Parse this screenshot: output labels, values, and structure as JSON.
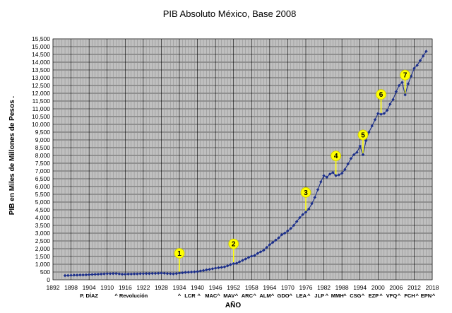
{
  "chart_data": {
    "type": "line",
    "title": "PIB Absoluto México, Base 2008",
    "xlabel": "AÑO",
    "ylabel": "PIB  en Miles de Millones de Pesos  .",
    "xlim": [
      1892,
      2018
    ],
    "ylim": [
      0,
      15500
    ],
    "x_ticks": [
      "1892",
      "1898",
      "1904",
      "1910",
      "1916",
      "1922",
      "1928",
      "1934",
      "1940",
      "1946",
      "1952",
      "1958",
      "1964",
      "1970",
      "1976",
      "1982",
      "1988",
      "1994",
      "2000",
      "2006",
      "2012",
      "2018"
    ],
    "y_ticks": [
      "0",
      "500",
      "1,000",
      "1,500",
      "2,000",
      "2,500",
      "3,000",
      "3,500",
      "4,000",
      "4,500",
      "5,000",
      "5,500",
      "6,000",
      "6,500",
      "7,000",
      "7,500",
      "8,000",
      "8,500",
      "9,000",
      "9,500",
      "10,000",
      "10,500",
      "11,000",
      "11,500",
      "12,000",
      "12,500",
      "13,000",
      "13,500",
      "14,000",
      "14,500",
      "15,000",
      "15,500"
    ],
    "grid": true,
    "line_color": "#1c2f8a",
    "plot_background": "#c0c0c0",
    "series": [
      {
        "name": "",
        "x": [
          1896,
          1897,
          1898,
          1899,
          1900,
          1901,
          1902,
          1903,
          1904,
          1905,
          1906,
          1907,
          1908,
          1909,
          1910,
          1911,
          1912,
          1913,
          1914,
          1915,
          1916,
          1917,
          1918,
          1919,
          1920,
          1921,
          1922,
          1923,
          1924,
          1925,
          1926,
          1927,
          1928,
          1929,
          1930,
          1931,
          1932,
          1933,
          1934,
          1935,
          1936,
          1937,
          1938,
          1939,
          1940,
          1941,
          1942,
          1943,
          1944,
          1945,
          1946,
          1947,
          1948,
          1949,
          1950,
          1951,
          1952,
          1953,
          1954,
          1955,
          1956,
          1957,
          1958,
          1959,
          1960,
          1961,
          1962,
          1963,
          1964,
          1965,
          1966,
          1967,
          1968,
          1969,
          1970,
          1971,
          1972,
          1973,
          1974,
          1975,
          1976,
          1977,
          1978,
          1979,
          1980,
          1981,
          1982,
          1983,
          1984,
          1985,
          1986,
          1987,
          1988,
          1989,
          1990,
          1991,
          1992,
          1993,
          1994,
          1995,
          1996,
          1997,
          1998,
          1999,
          2000,
          2001,
          2002,
          2003,
          2004,
          2005,
          2006,
          2007,
          2008,
          2009,
          2010,
          2011,
          2012,
          2013,
          2014,
          2015,
          2016
        ],
        "y": [
          270,
          280,
          290,
          300,
          300,
          310,
          310,
          320,
          330,
          340,
          350,
          360,
          370,
          380,
          390,
          390,
          400,
          400,
          380,
          360,
          360,
          370,
          370,
          380,
          380,
          390,
          390,
          400,
          400,
          410,
          410,
          420,
          430,
          420,
          400,
          390,
          380,
          400,
          430,
          450,
          480,
          490,
          500,
          510,
          530,
          570,
          600,
          640,
          670,
          710,
          750,
          780,
          800,
          830,
          900,
          980,
          1040,
          1060,
          1160,
          1250,
          1340,
          1440,
          1520,
          1560,
          1700,
          1800,
          1900,
          2080,
          2260,
          2400,
          2550,
          2700,
          2900,
          3000,
          3150,
          3300,
          3500,
          3750,
          4000,
          4200,
          4350,
          4550,
          4900,
          5300,
          5800,
          6300,
          6700,
          6600,
          6800,
          6900,
          6700,
          6750,
          6850,
          7100,
          7450,
          7800,
          8050,
          8200,
          8600,
          8050,
          8950,
          9500,
          9900,
          10300,
          10700,
          10650,
          10700,
          10900,
          11300,
          11600,
          12100,
          12500,
          12700,
          11900,
          12600,
          13100,
          13600,
          13800,
          14100,
          14400,
          14700
        ]
      }
    ],
    "callouts": [
      {
        "label": "1",
        "x": 1934,
        "y": 430
      },
      {
        "label": "2",
        "x": 1952,
        "y": 1040
      },
      {
        "label": "3",
        "x": 1976,
        "y": 4350
      },
      {
        "label": "4",
        "x": 1986,
        "y": 6700
      },
      {
        "label": "5",
        "x": 1995,
        "y": 8050
      },
      {
        "label": "6",
        "x": 2001,
        "y": 10650
      },
      {
        "label": "7",
        "x": 2009,
        "y": 11900
      }
    ],
    "era_labels": [
      {
        "text": "P. DÍAZ",
        "x": 1904
      },
      {
        "text": "^ Revolución",
        "x": 1918
      },
      {
        "text": "^",
        "x": 1934
      },
      {
        "text": "LCR",
        "x": 1937.5
      },
      {
        "text": "^",
        "x": 1940.5
      },
      {
        "text": "MAC",
        "x": 1944.5
      },
      {
        "text": "^",
        "x": 1947
      },
      {
        "text": "MAV",
        "x": 1950.5
      },
      {
        "text": "^",
        "x": 1953
      },
      {
        "text": "ARC",
        "x": 1956.5
      },
      {
        "text": "^",
        "x": 1959
      },
      {
        "text": "ALM",
        "x": 1962.5
      },
      {
        "text": "^",
        "x": 1965
      },
      {
        "text": "GDO",
        "x": 1968.5
      },
      {
        "text": "^",
        "x": 1971
      },
      {
        "text": "LEA",
        "x": 1974.5
      },
      {
        "text": "^",
        "x": 1977
      },
      {
        "text": "JLP",
        "x": 1980.5
      },
      {
        "text": "^",
        "x": 1983
      },
      {
        "text": "MMH",
        "x": 1986.5
      },
      {
        "text": "^",
        "x": 1989
      },
      {
        "text": "CSG",
        "x": 1992.5
      },
      {
        "text": "^",
        "x": 1995
      },
      {
        "text": "EZP",
        "x": 1998.5
      },
      {
        "text": "^",
        "x": 2001
      },
      {
        "text": "VFQ",
        "x": 2004.5
      },
      {
        "text": "^",
        "x": 2007
      },
      {
        "text": "FCH",
        "x": 2010.5
      },
      {
        "text": "^",
        "x": 2013
      },
      {
        "text": "EPN",
        "x": 2016
      },
      {
        "text": "^",
        "x": 2018.5
      }
    ]
  }
}
